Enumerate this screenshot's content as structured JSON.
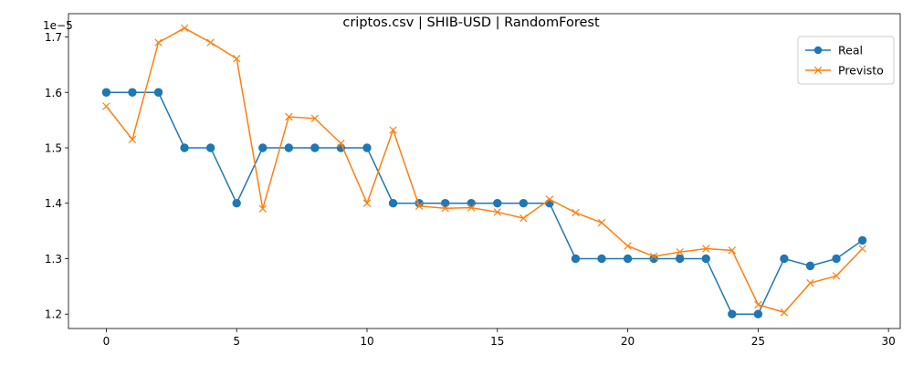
{
  "chart_data": {
    "type": "line",
    "title": "criptos.csv | SHIB-USD | RandomForest",
    "xlabel": "",
    "ylabel": "",
    "y_offset_text": "1e−5",
    "x": [
      0,
      1,
      2,
      3,
      4,
      5,
      6,
      7,
      8,
      9,
      10,
      11,
      12,
      13,
      14,
      15,
      16,
      17,
      18,
      19,
      20,
      21,
      22,
      23,
      24,
      25,
      26,
      27,
      28,
      29
    ],
    "xlim": [
      -1.45,
      30.45
    ],
    "ylim": [
      1.174,
      1.742
    ],
    "xticks": [
      0,
      5,
      10,
      15,
      20,
      25,
      30
    ],
    "xtick_labels": [
      "0",
      "5",
      "10",
      "15",
      "20",
      "25",
      "30"
    ],
    "yticks": [
      1.2,
      1.3,
      1.4,
      1.5,
      1.6,
      1.7
    ],
    "ytick_labels": [
      "1.2",
      "1.3",
      "1.4",
      "1.5",
      "1.6",
      "1.7"
    ],
    "grid": false,
    "legend_position": "top-right",
    "series": [
      {
        "name": "Real",
        "color": "#1f77b4",
        "marker": "circle",
        "values": [
          1.6,
          1.6,
          1.6,
          1.5,
          1.5,
          1.4,
          1.5,
          1.5,
          1.5,
          1.5,
          1.5,
          1.4,
          1.4,
          1.4,
          1.4,
          1.4,
          1.4,
          1.4,
          1.3,
          1.3,
          1.3,
          1.3,
          1.3,
          1.3,
          1.2,
          1.2,
          1.3,
          1.287,
          1.3,
          1.333
        ]
      },
      {
        "name": "Previsto",
        "color": "#ff7f0e",
        "marker": "x",
        "values": [
          1.575,
          1.515,
          1.69,
          1.716,
          1.69,
          1.661,
          1.39,
          1.556,
          1.553,
          1.508,
          1.4,
          1.532,
          1.395,
          1.391,
          1.392,
          1.384,
          1.373,
          1.407,
          1.383,
          1.365,
          1.323,
          1.304,
          1.312,
          1.318,
          1.315,
          1.217,
          1.203,
          1.256,
          1.269,
          1.318
        ]
      }
    ]
  }
}
